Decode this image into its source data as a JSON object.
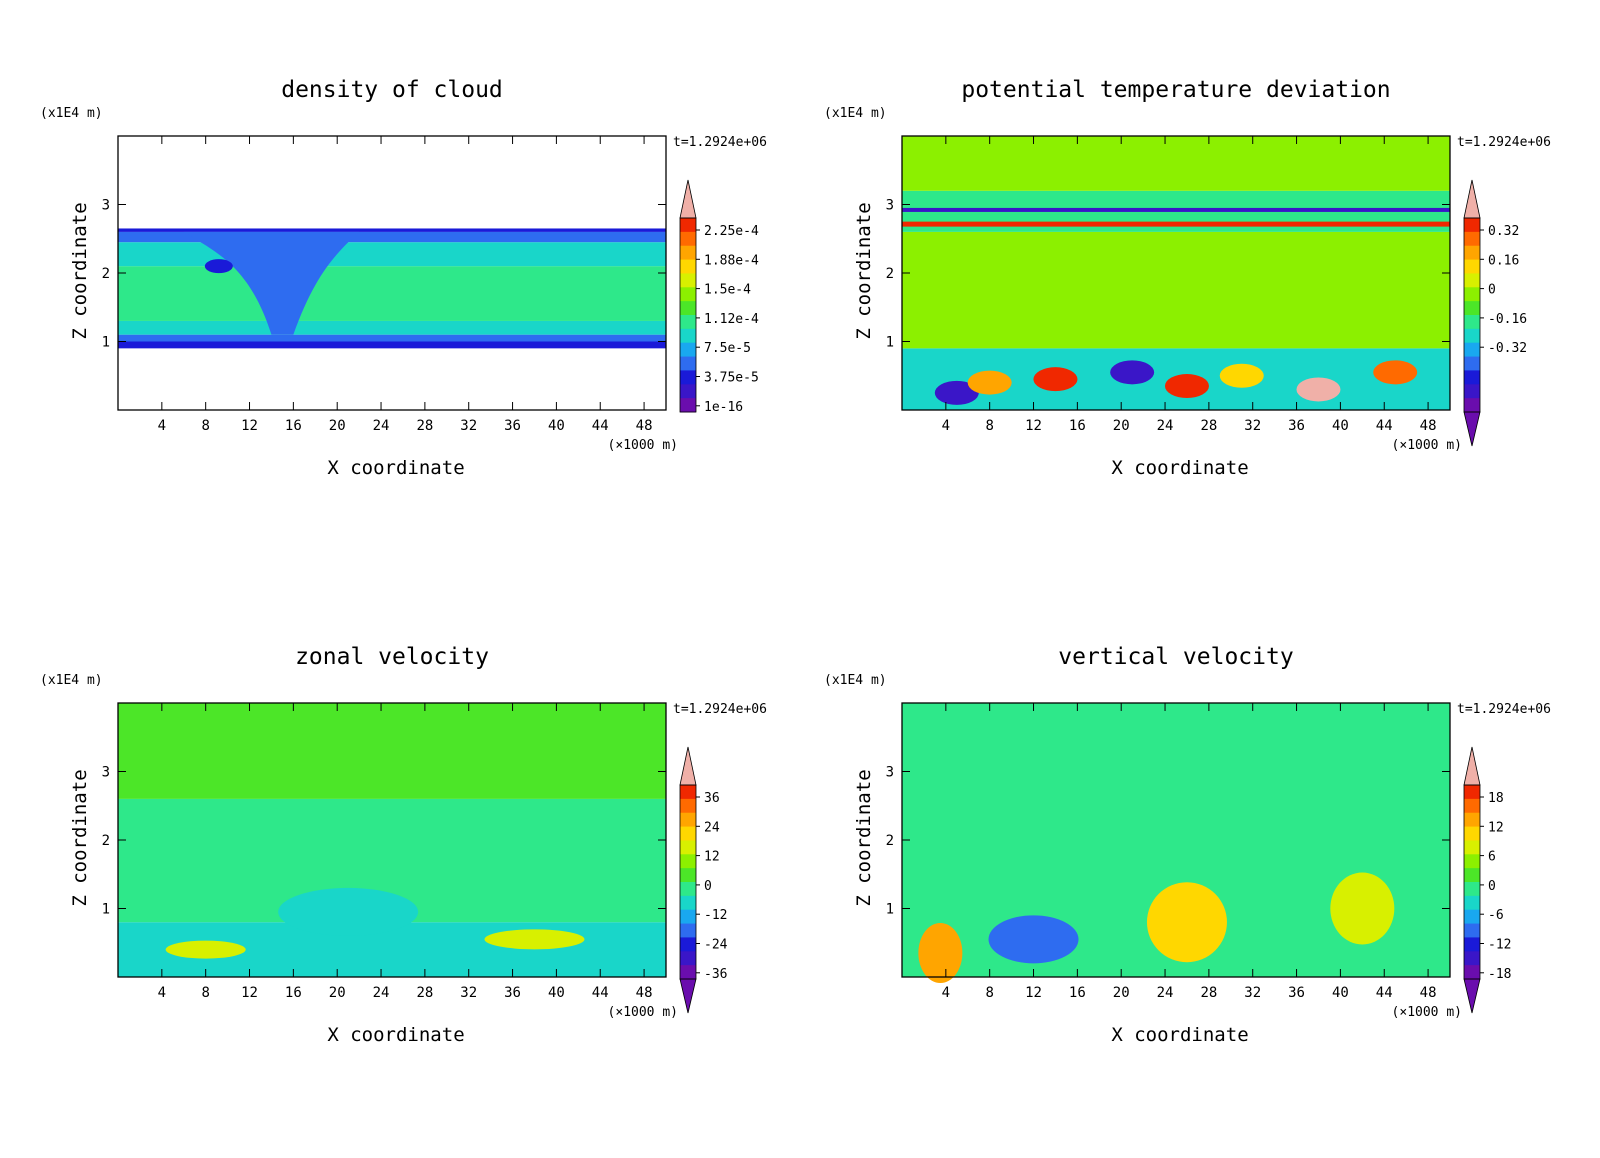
{
  "chart_data": [
    {
      "type": "heatmap",
      "title": "density of cloud",
      "xlabel": "X coordinate",
      "ylabel": "Z coordinate",
      "x_unit": "(×1000 m)",
      "y_unit": "(x1E4 m)",
      "time_label": "t=1.2924e+06",
      "xlim": [
        0,
        50
      ],
      "ylim": [
        0,
        4
      ],
      "x_ticks": [
        4,
        8,
        12,
        16,
        20,
        24,
        28,
        32,
        36,
        40,
        44,
        48
      ],
      "y_ticks": [
        1,
        2,
        3
      ],
      "colorbar": {
        "labels": [
          "2.25e-4",
          "1.88e-4",
          "1.5e-4",
          "1.12e-4",
          "7.5e-5",
          "3.75e-5",
          "1e-16"
        ],
        "under_arrow": false
      },
      "bands": [
        {
          "z0": 0.9,
          "z1": 1.0,
          "color": "#1a1ad8"
        },
        {
          "z0": 1.0,
          "z1": 1.1,
          "color": "#2e6cf0"
        },
        {
          "z0": 1.1,
          "z1": 1.3,
          "color": "#19d6c9"
        },
        {
          "z0": 1.3,
          "z1": 2.1,
          "color": "#2ee88a"
        },
        {
          "z0": 2.1,
          "z1": 2.45,
          "color": "#19d6c9"
        },
        {
          "z0": 2.45,
          "z1": 2.6,
          "color": "#2e6cf0"
        },
        {
          "z0": 2.6,
          "z1": 2.65,
          "color": "#1a1ad8"
        }
      ]
    },
    {
      "type": "heatmap",
      "title": "potential temperature deviation",
      "xlabel": "X coordinate",
      "ylabel": "Z coordinate",
      "x_unit": "(×1000 m)",
      "y_unit": "(x1E4 m)",
      "time_label": "t=1.2924e+06",
      "xlim": [
        0,
        50
      ],
      "ylim": [
        0,
        4
      ],
      "x_ticks": [
        4,
        8,
        12,
        16,
        20,
        24,
        28,
        32,
        36,
        40,
        44,
        48
      ],
      "y_ticks": [
        1,
        2,
        3
      ],
      "colorbar": {
        "labels": [
          "0.32",
          "0.16",
          "0",
          "-0.16",
          "-0.32"
        ],
        "under_arrow": true
      },
      "bands": [
        {
          "z0": 0.0,
          "z1": 0.9,
          "color": "#19d6c9"
        },
        {
          "z0": 0.9,
          "z1": 2.6,
          "color": "#8cf000"
        },
        {
          "z0": 2.6,
          "z1": 3.2,
          "color": "#2ee88a"
        },
        {
          "z0": 3.2,
          "z1": 4.0,
          "color": "#8cf000"
        }
      ]
    },
    {
      "type": "heatmap",
      "title": "zonal velocity",
      "xlabel": "X coordinate",
      "ylabel": "Z coordinate",
      "x_unit": "(×1000 m)",
      "y_unit": "(x1E4 m)",
      "time_label": "t=1.2924e+06",
      "xlim": [
        0,
        50
      ],
      "ylim": [
        0,
        4
      ],
      "x_ticks": [
        4,
        8,
        12,
        16,
        20,
        24,
        28,
        32,
        36,
        40,
        44,
        48
      ],
      "y_ticks": [
        1,
        2,
        3
      ],
      "colorbar": {
        "labels": [
          "36",
          "24",
          "12",
          "0",
          "-12",
          "-24",
          "-36"
        ],
        "under_arrow": true
      },
      "bands": [
        {
          "z0": 0.0,
          "z1": 0.8,
          "color": "#19d6c9"
        },
        {
          "z0": 0.8,
          "z1": 2.6,
          "color": "#2ee88a"
        },
        {
          "z0": 2.6,
          "z1": 4.0,
          "color": "#4ce628"
        }
      ]
    },
    {
      "type": "heatmap",
      "title": "vertical velocity",
      "xlabel": "X coordinate",
      "ylabel": "Z coordinate",
      "x_unit": "(×1000 m)",
      "y_unit": "(x1E4 m)",
      "time_label": "t=1.2924e+06",
      "xlim": [
        0,
        50
      ],
      "ylim": [
        0,
        4
      ],
      "x_ticks": [
        4,
        8,
        12,
        16,
        20,
        24,
        28,
        32,
        36,
        40,
        44,
        48
      ],
      "y_ticks": [
        1,
        2,
        3
      ],
      "colorbar": {
        "labels": [
          "18",
          "12",
          "6",
          "0",
          "-6",
          "-12",
          "-18"
        ],
        "under_arrow": true
      },
      "bands": [
        {
          "z0": 0.0,
          "z1": 4.0,
          "color": "#2ee88a"
        }
      ]
    }
  ],
  "colormap": [
    "#6a0dad",
    "#3a16c8",
    "#1a1ad8",
    "#2e6cf0",
    "#19a8f0",
    "#19d6c9",
    "#2ee88a",
    "#4ce628",
    "#8cf000",
    "#d8f000",
    "#ffd700",
    "#ffa500",
    "#ff6a00",
    "#f02800",
    "#f0b0a8"
  ]
}
